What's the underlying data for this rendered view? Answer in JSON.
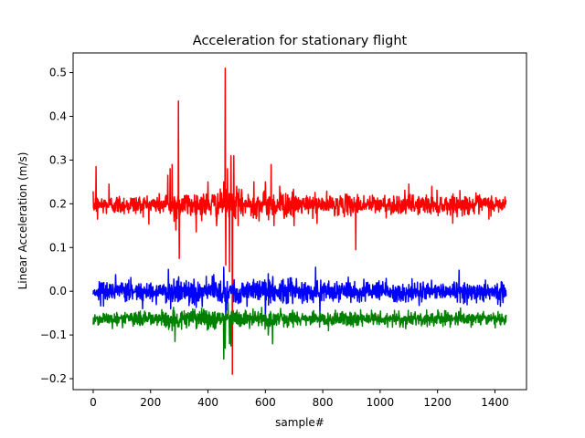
{
  "chart_data": {
    "type": "line",
    "title": "Acceleration for stationary flight",
    "xlabel": "sample#",
    "ylabel": "Linear Acceleration (m/s)",
    "xlim": [
      -70,
      1510
    ],
    "ylim": [
      -0.225,
      0.545
    ],
    "xticks": [
      0,
      200,
      400,
      600,
      800,
      1000,
      1200,
      1400
    ],
    "yticks": [
      -0.2,
      -0.1,
      0.0,
      0.1,
      0.2,
      0.3,
      0.4,
      0.5
    ],
    "ytick_labels": [
      "−0.2",
      "−0.1",
      "0.0",
      "0.1",
      "0.2",
      "0.3",
      "0.4",
      "0.5"
    ],
    "grid": false,
    "legend": "none",
    "n_samples": 1440,
    "series": [
      {
        "color": "#ff0000",
        "baseline": 0.198,
        "noise": 0.011,
        "spikes": [
          [
            10,
            0.285
          ],
          [
            15,
            0.165
          ],
          [
            55,
            0.245
          ],
          [
            260,
            0.265
          ],
          [
            268,
            0.28
          ],
          [
            275,
            0.29
          ],
          [
            282,
            0.16
          ],
          [
            288,
            0.14
          ],
          [
            297,
            0.435
          ],
          [
            300,
            0.075
          ],
          [
            400,
            0.25
          ],
          [
            430,
            0.15
          ],
          [
            455,
            0.25
          ],
          [
            460,
            0.51
          ],
          [
            462,
            0.06
          ],
          [
            468,
            0.28
          ],
          [
            475,
            0.045
          ],
          [
            480,
            0.31
          ],
          [
            485,
            -0.19
          ],
          [
            490,
            0.31
          ],
          [
            500,
            0.24
          ],
          [
            505,
            0.15
          ],
          [
            560,
            0.25
          ],
          [
            600,
            0.25
          ],
          [
            620,
            0.29
          ],
          [
            630,
            0.15
          ],
          [
            650,
            0.24
          ],
          [
            700,
            0.15
          ],
          [
            780,
            0.155
          ],
          [
            915,
            0.095
          ],
          [
            1100,
            0.245
          ],
          [
            1180,
            0.24
          ]
        ]
      },
      {
        "color": "#0000ff",
        "baseline": 0.0,
        "noise": 0.011,
        "spikes": [
          [
            262,
            0.05
          ],
          [
            270,
            -0.04
          ],
          [
            455,
            0.055
          ],
          [
            462,
            -0.06
          ],
          [
            600,
            -0.06
          ],
          [
            610,
            0.04
          ],
          [
            775,
            0.055
          ],
          [
            790,
            -0.05
          ],
          [
            1275,
            0.048
          ]
        ]
      },
      {
        "color": "#008000",
        "baseline": -0.063,
        "noise": 0.008,
        "spikes": [
          [
            275,
            -0.09
          ],
          [
            285,
            -0.115
          ],
          [
            455,
            -0.155
          ],
          [
            460,
            -0.13
          ],
          [
            470,
            -0.025
          ],
          [
            475,
            -0.12
          ],
          [
            480,
            -0.125
          ],
          [
            610,
            -0.1
          ],
          [
            625,
            -0.12
          ],
          [
            820,
            -0.09
          ]
        ]
      }
    ]
  }
}
